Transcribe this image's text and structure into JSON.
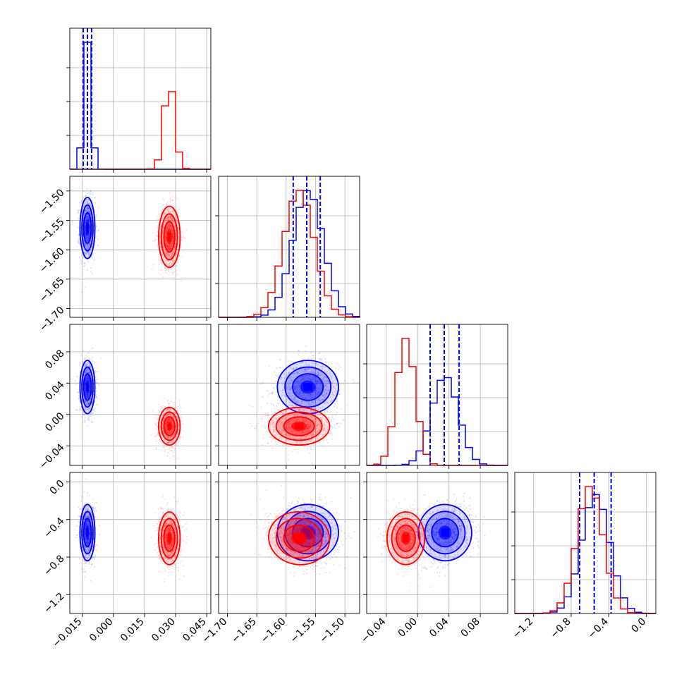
{
  "chart_data": {
    "type": "corner",
    "title": "",
    "parameters": [
      "",
      "",
      "",
      ""
    ],
    "series": [
      {
        "name": "",
        "color": "#0000ff"
      },
      {
        "name": "",
        "color": "#ff0000"
      }
    ],
    "ranges": [
      [
        -0.021,
        0.047
      ],
      [
        -1.715,
        -1.475
      ],
      [
        -0.065,
        0.115
      ],
      [
        -1.4,
        0.1
      ]
    ],
    "ticks": [
      [
        -0.015,
        0.0,
        0.015,
        0.03,
        0.045
      ],
      [
        -1.7,
        -1.65,
        -1.6,
        -1.55,
        -1.5
      ],
      [
        -0.04,
        0.0,
        0.04,
        0.08
      ],
      [
        -1.2,
        -0.8,
        -0.4,
        0.0
      ]
    ],
    "tick_labels": [
      [
        "−0.015",
        "0.000",
        "0.015",
        "0.030",
        "0.045"
      ],
      [
        "−1.70",
        "−1.65",
        "−1.60",
        "−1.55",
        "−1.50"
      ],
      [
        "−0.04",
        "0.00",
        "0.04",
        "0.08"
      ],
      [
        "−1.2",
        "−0.8",
        "−0.4",
        "0.0"
      ]
    ],
    "blue_means": [
      -0.0125,
      -1.563,
      0.035,
      -0.54
    ],
    "blue_sds": [
      0.0018,
      0.026,
      0.017,
      0.15
    ],
    "red_means": [
      0.027,
      -1.578,
      -0.015,
      -0.6
    ],
    "red_sds": [
      0.0026,
      0.026,
      0.012,
      0.14
    ],
    "quantiles_blue": [
      [
        -0.0145,
        -0.0125,
        -0.0105
      ],
      [
        -1.588,
        -1.565,
        -1.542
      ],
      [
        0.016,
        0.034,
        0.053
      ],
      [
        -0.71,
        -0.555,
        -0.375
      ]
    ],
    "correlations": {
      "blue_2_3": 0.15,
      "red_1_3": -0.25
    },
    "grid": true
  }
}
